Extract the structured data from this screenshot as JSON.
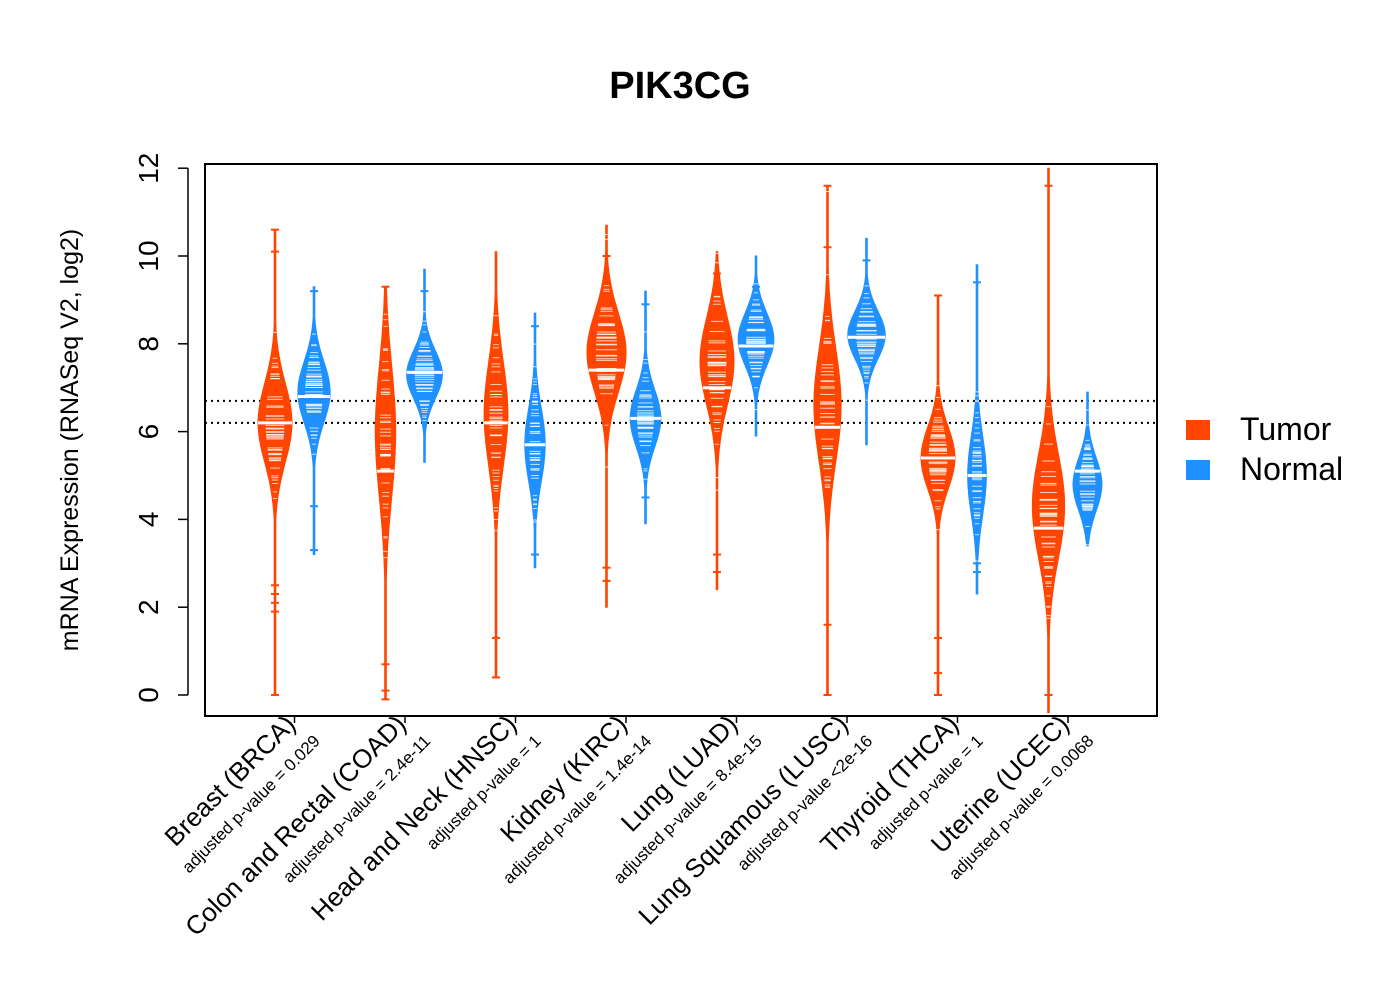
{
  "chart_data": {
    "type": "violin",
    "title": "PIK3CG",
    "ylabel": "mRNA Expression (RNASeq V2, log2)",
    "xlabel": "",
    "ylim": [
      -0.4,
      12.1
    ],
    "yticks": [
      0,
      2,
      4,
      6,
      8,
      10,
      12
    ],
    "reference_lines": [
      6.2,
      6.7
    ],
    "colors": {
      "Tumor": "#ff4500",
      "Normal": "#1e90ff",
      "median": "#ffffff",
      "reference": "#000000"
    },
    "legend": {
      "position": "right",
      "entries": [
        "Tumor",
        "Normal"
      ]
    },
    "categories": [
      {
        "name": "Breast (BRCA)",
        "pvalue": "adjusted p-value = 0.029",
        "tumor": {
          "min": 0,
          "max": 10.6,
          "median": 6.2,
          "mode": 6.2,
          "sd": 0.9,
          "scale": 1.0,
          "outliers": [
            0,
            1.9,
            2.1,
            2.3,
            2.5,
            10.1,
            10.6
          ]
        },
        "normal": {
          "min": 3.2,
          "max": 9.3,
          "median": 6.8,
          "mode": 6.9,
          "sd": 0.7,
          "scale": 0.95,
          "outliers": [
            3.3,
            4.3,
            9.2
          ]
        }
      },
      {
        "name": "Colon and Rectal (COAD)",
        "pvalue": "adjusted p-value = 2.4e-11",
        "tumor": {
          "min": -0.1,
          "max": 9.3,
          "median": 5.1,
          "mode": 6.0,
          "sd": 1.5,
          "scale": 0.6,
          "outliers": [
            -0.1,
            0.1,
            0.7,
            9.3
          ]
        },
        "normal": {
          "min": 5.3,
          "max": 9.7,
          "median": 7.35,
          "mode": 7.3,
          "sd": 0.55,
          "scale": 1.05,
          "outliers": [
            9.2
          ]
        }
      },
      {
        "name": "Head and Neck (HNSC)",
        "pvalue": "adjusted p-value = 1",
        "tumor": {
          "min": 0.4,
          "max": 10.1,
          "median": 6.2,
          "mode": 6.4,
          "sd": 1.2,
          "scale": 0.7,
          "outliers": [
            0.4,
            1.3
          ]
        },
        "normal": {
          "min": 2.9,
          "max": 8.7,
          "median": 5.7,
          "mode": 5.7,
          "sd": 0.85,
          "scale": 0.6,
          "outliers": [
            3.2,
            8.4
          ]
        }
      },
      {
        "name": "Kidney (KIRC)",
        "pvalue": "adjusted p-value = 1.4e-14",
        "tumor": {
          "min": 2.0,
          "max": 10.7,
          "median": 7.4,
          "mode": 7.8,
          "sd": 0.9,
          "scale": 1.15,
          "outliers": [
            2.6,
            2.9,
            10.0
          ]
        },
        "normal": {
          "min": 3.9,
          "max": 9.2,
          "median": 6.3,
          "mode": 6.3,
          "sd": 0.65,
          "scale": 0.9,
          "outliers": [
            4.5,
            8.9
          ]
        }
      },
      {
        "name": "Lung (LUAD)",
        "pvalue": "adjusted p-value = 8.4e-15",
        "tumor": {
          "min": 2.4,
          "max": 10.1,
          "median": 7.0,
          "mode": 7.6,
          "sd": 1.0,
          "scale": 1.0,
          "outliers": [
            2.8,
            3.2,
            9.6
          ]
        },
        "normal": {
          "min": 5.9,
          "max": 10.0,
          "median": 7.95,
          "mode": 8.1,
          "sd": 0.6,
          "scale": 1.05,
          "outliers": [
            9.3
          ]
        }
      },
      {
        "name": "Lung Squamous (LUSC)",
        "pvalue": "adjusted p-value <2e-16",
        "tumor": {
          "min": 0,
          "max": 11.6,
          "median": 6.1,
          "mode": 6.6,
          "sd": 1.3,
          "scale": 0.8,
          "outliers": [
            0,
            1.6,
            10.2,
            11.6
          ]
        },
        "normal": {
          "min": 5.7,
          "max": 10.4,
          "median": 8.15,
          "mode": 8.2,
          "sd": 0.55,
          "scale": 1.1,
          "outliers": [
            9.9
          ]
        }
      },
      {
        "name": "Thyroid (THCA)",
        "pvalue": "adjusted p-value = 1",
        "tumor": {
          "min": 0,
          "max": 9.1,
          "median": 5.4,
          "mode": 5.4,
          "sd": 0.7,
          "scale": 1.0,
          "outliers": [
            0,
            0.5,
            1.3,
            9.1
          ]
        },
        "normal": {
          "min": 2.3,
          "max": 9.8,
          "median": 5.0,
          "mode": 5.0,
          "sd": 0.9,
          "scale": 0.55,
          "outliers": [
            2.8,
            3.0,
            9.4
          ]
        }
      },
      {
        "name": "Uterine (UCEC)",
        "pvalue": "adjusted p-value = 0.0068",
        "tumor": {
          "min": -0.4,
          "max": 12.0,
          "median": 3.8,
          "mode": 4.3,
          "sd": 1.2,
          "scale": 0.95,
          "outliers": [
            0,
            11.6
          ]
        },
        "normal": {
          "min": 3.4,
          "max": 6.9,
          "median": 5.1,
          "mode": 4.8,
          "sd": 0.6,
          "scale": 0.85,
          "outliers": []
        }
      }
    ]
  }
}
